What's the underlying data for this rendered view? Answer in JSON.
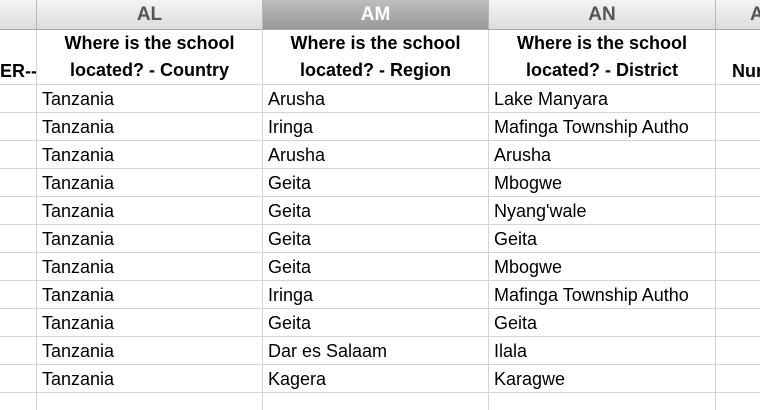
{
  "column_letters": [
    "AL",
    "AM",
    "AN",
    "A"
  ],
  "header_row": {
    "left": "ER--",
    "cells": [
      "Where is the school located? - Country",
      "Where is the school located? - Region",
      "Where is the school located? - District"
    ],
    "right": "Nur"
  },
  "rows": [
    [
      "Tanzania",
      "Arusha",
      "Lake Manyara"
    ],
    [
      "Tanzania",
      "Iringa",
      "Mafinga Township Autho"
    ],
    [
      "Tanzania",
      "Arusha",
      "Arusha"
    ],
    [
      "Tanzania",
      "Geita",
      "Mbogwe"
    ],
    [
      "Tanzania",
      "Geita",
      "Nyang'wale"
    ],
    [
      "Tanzania",
      "Geita",
      "Geita"
    ],
    [
      "Tanzania",
      "Geita",
      "Mbogwe"
    ],
    [
      "Tanzania",
      "Iringa",
      "Mafinga Township Autho"
    ],
    [
      "Tanzania",
      "Geita",
      "Geita"
    ],
    [
      "Tanzania",
      "Dar es Salaam",
      "Ilala"
    ],
    [
      "Tanzania",
      "Kagera",
      "Karagwe"
    ]
  ]
}
